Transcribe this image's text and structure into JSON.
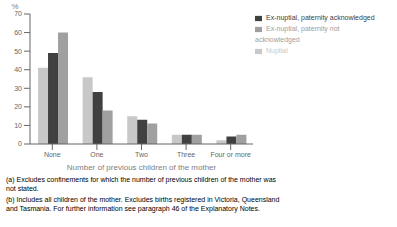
{
  "chart_data": {
    "type": "bar",
    "categories": [
      "None",
      "One",
      "Two",
      "Three",
      "Four or more"
    ],
    "series": [
      {
        "name": "Nuptial",
        "color": "#c8c8c8",
        "values": [
          41,
          36,
          15,
          5,
          2
        ]
      },
      {
        "name": "Ex-nuptial, paternity acknowledged",
        "color": "#404040",
        "values": [
          49,
          28,
          13,
          5,
          4
        ]
      },
      {
        "name": "Ex-nuptial, paternity not acknowledged",
        "color": "#a0a0a0",
        "values": [
          60,
          18,
          11,
          5,
          5
        ]
      }
    ],
    "ylabel": "%",
    "xlabel": "Number of previous children of the mother",
    "ylim": [
      0,
      70
    ],
    "yticks": [
      0,
      10,
      20,
      30,
      40,
      50,
      60,
      70
    ],
    "legend": "right",
    "grid": false,
    "annotations": [
      "(a) Excludes confinements for which the number of previous children of the mother was\nnot stated.",
      "(b) Includes all children of the mother. Excludes births registered in Victoria, Queensland\nand Tasmania. For further information see paragraph 46 of the Explanatory Notes."
    ]
  }
}
